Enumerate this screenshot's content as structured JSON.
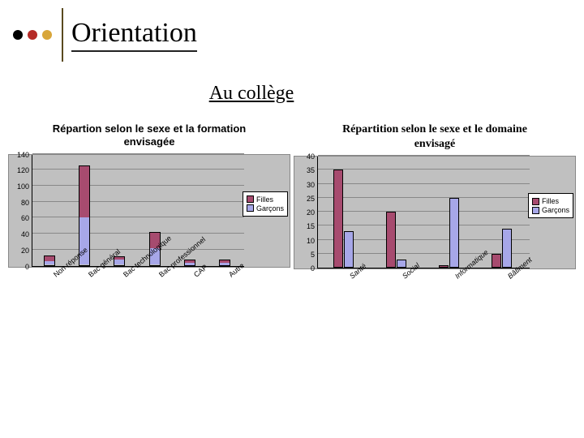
{
  "header": {
    "title": "Orientation",
    "bullet_colors": [
      "#000000",
      "#b52b27",
      "#d8a63a"
    ],
    "vline_color": "#5a4a1f"
  },
  "subtitle": "Au collège",
  "colors": {
    "filles": "#a74b6f",
    "garcons": "#a7a7e8",
    "plot_bg": "#c0c0c0",
    "grid": "#888888"
  },
  "chart_left": {
    "title_l1": "Répartion selon le sexe et la formation",
    "title_l2": "envisagée",
    "type": "stacked-bar",
    "ylim": [
      0,
      140
    ],
    "ytick_step": 20,
    "categories": [
      "Non réponse",
      "Bac général",
      "Bac technologique",
      "Bac professionnel",
      "CAP",
      "Autre"
    ],
    "series": {
      "garcons": [
        5,
        60,
        8,
        22,
        4,
        3
      ],
      "filles": [
        8,
        65,
        4,
        20,
        4,
        5
      ]
    },
    "legend": [
      "Filles",
      "Garçons"
    ]
  },
  "chart_right": {
    "title_l1": "Répartition selon le sexe et le domaine",
    "title_l2": "envisagé",
    "type": "grouped-bar",
    "ylim": [
      0,
      40
    ],
    "ytick_step": 5,
    "categories": [
      "Santé",
      "Social",
      "Informatique",
      "Bâtiment"
    ],
    "series": {
      "filles": [
        35,
        20,
        1,
        5
      ],
      "garcons": [
        13,
        3,
        25,
        14
      ]
    },
    "legend": [
      "Filles",
      "Garçons"
    ]
  }
}
